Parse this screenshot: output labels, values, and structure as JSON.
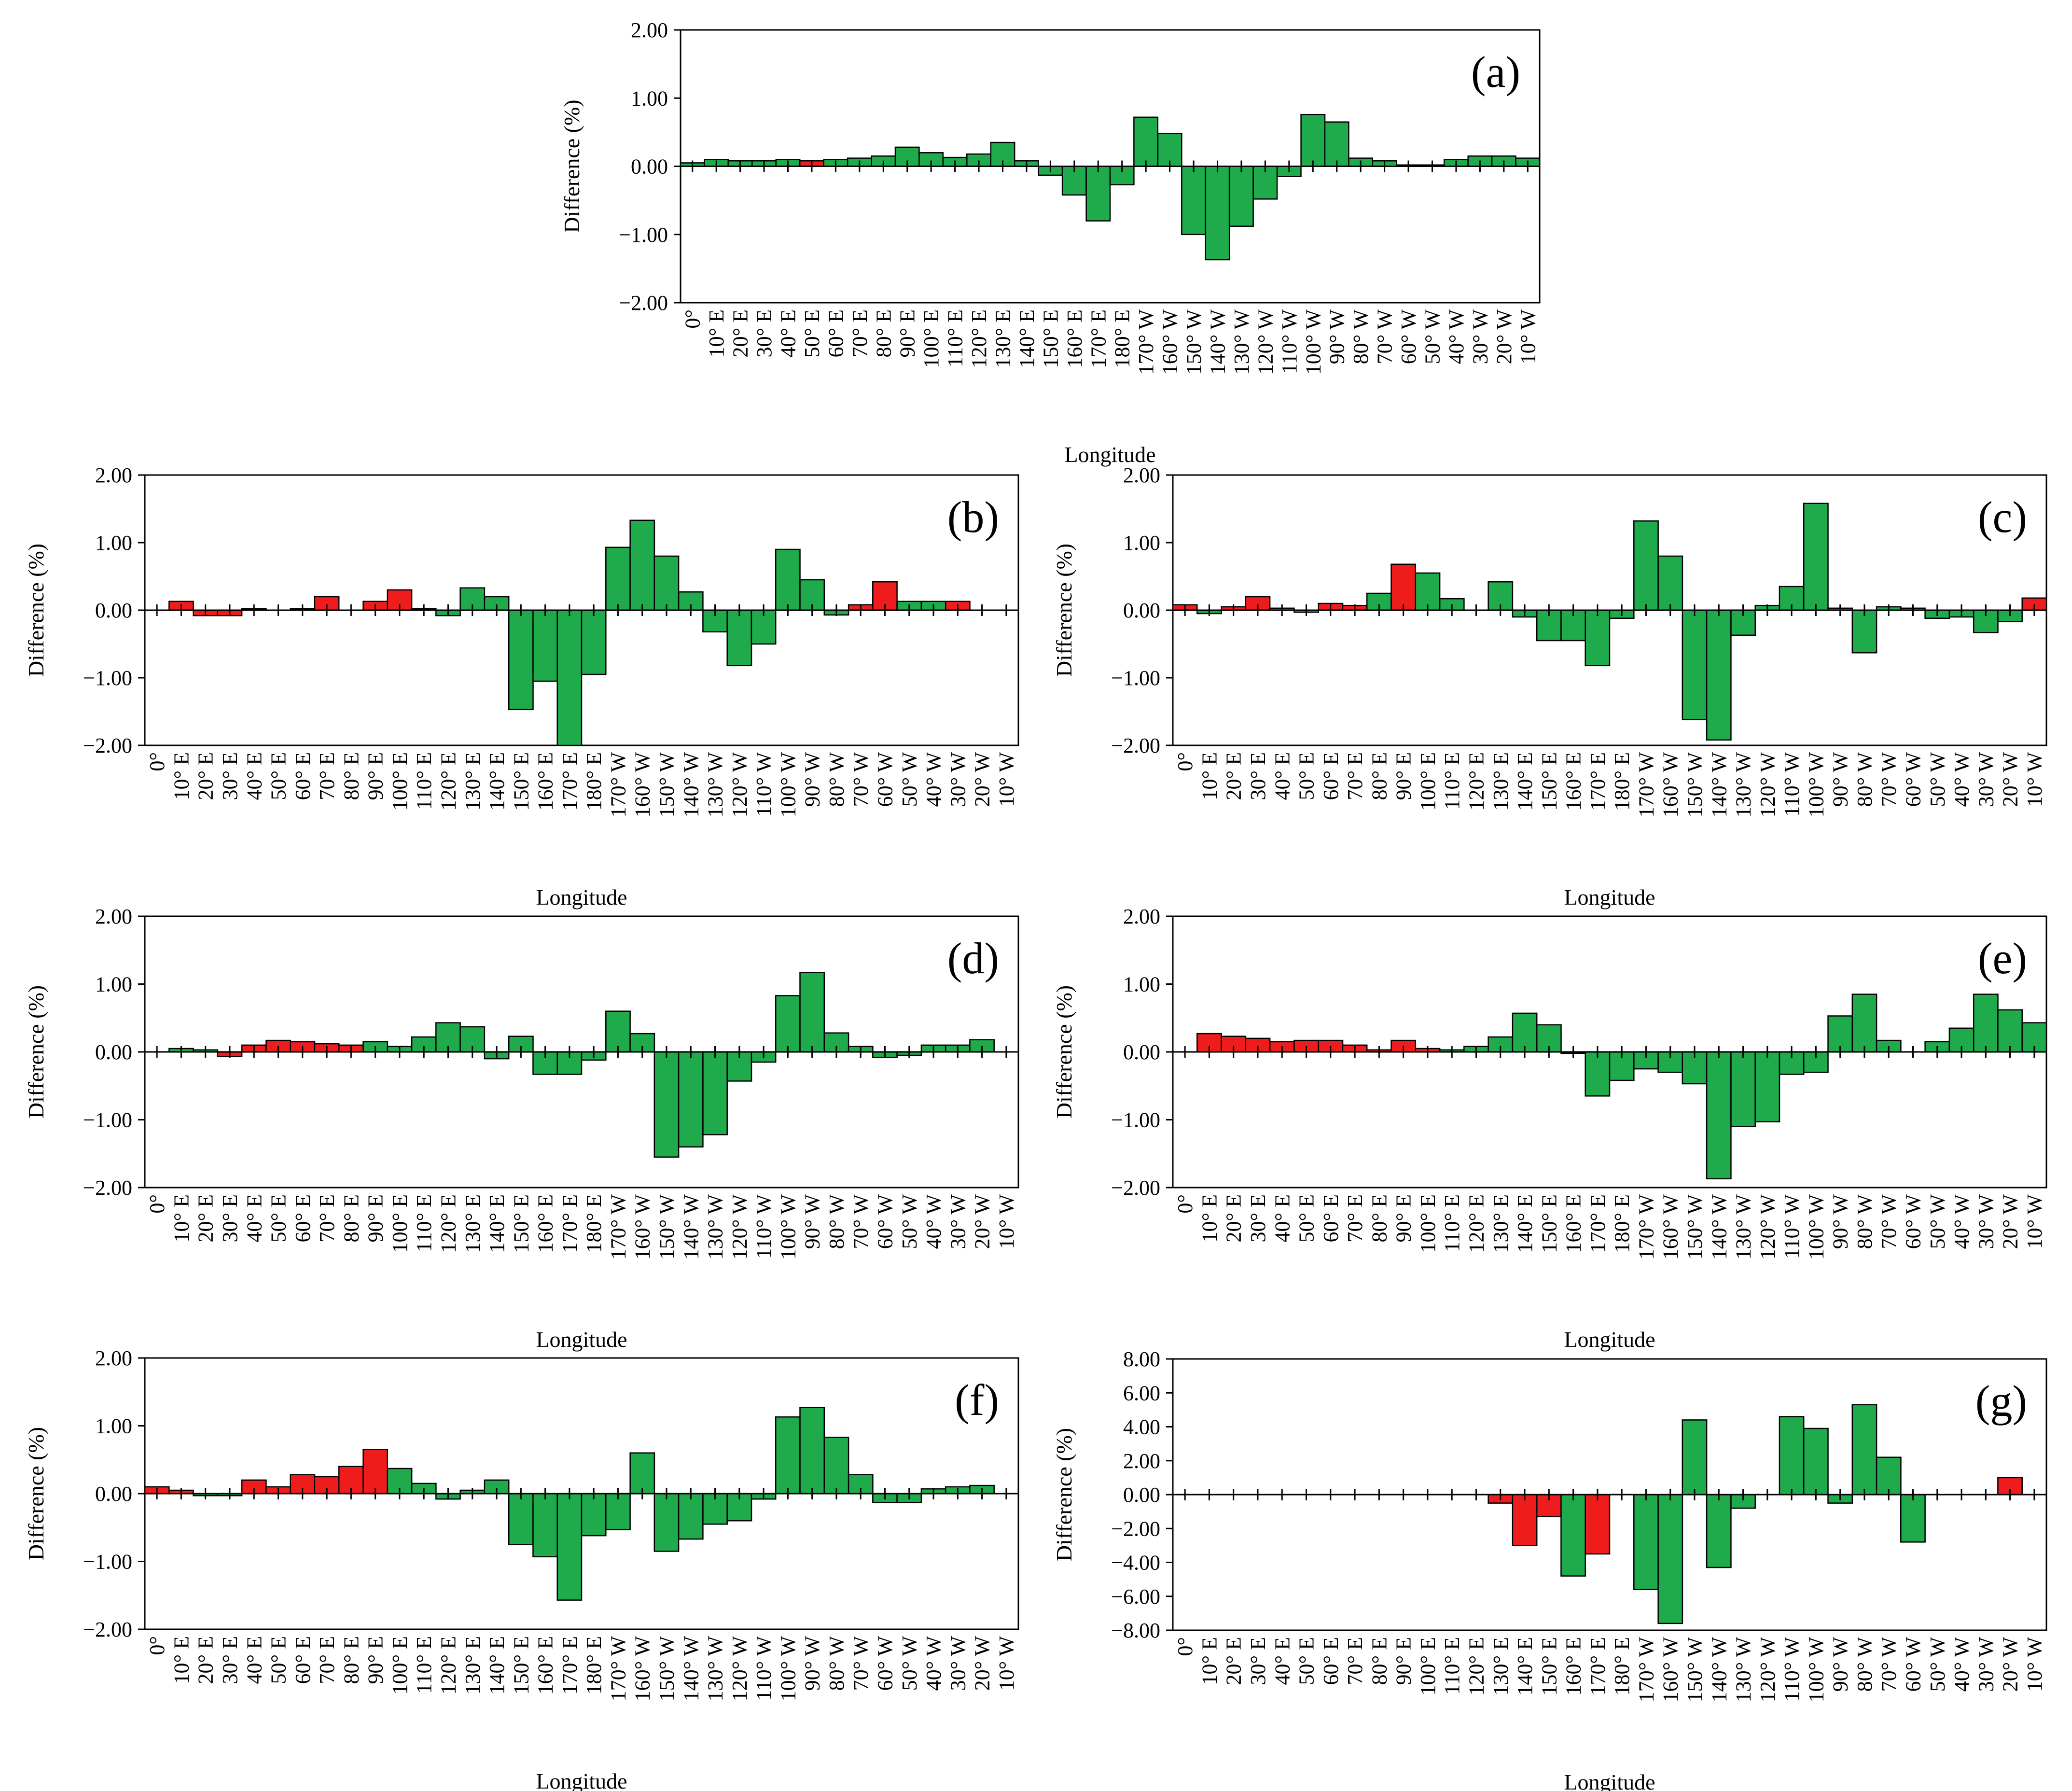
{
  "figure": {
    "colors": {
      "green": "#1faa4b",
      "red": "#ee1c1c",
      "edge": "#000000",
      "axis": "#000000"
    },
    "x_tick_labels": [
      "0°",
      "10° E",
      "20° E",
      "30° E",
      "40° E",
      "50° E",
      "60° E",
      "70° E",
      "80° E",
      "90° E",
      "100° E",
      "110° E",
      "120° E",
      "130° E",
      "140° E",
      "150° E",
      "160° E",
      "170° E",
      "180° E",
      "170° W",
      "160° W",
      "150° W",
      "140° W",
      "130° W",
      "120° W",
      "110° W",
      "100° W",
      "90° W",
      "80° W",
      "70° W",
      "60° W",
      "50° W",
      "40° W",
      "30° W",
      "20° W",
      "10° W"
    ]
  },
  "chart_data": [
    {
      "id": "a",
      "type": "bar",
      "panel_label": "(a)",
      "xlabel": "Longitude",
      "ylabel": "Difference  (%)",
      "ylim": [
        -2,
        2
      ],
      "yticks": [
        "2.00",
        "1.00",
        "0.00",
        "−1.00",
        "−2.00"
      ],
      "values": [
        0.05,
        0.1,
        0.08,
        0.08,
        0.1,
        0.08,
        0.1,
        0.12,
        0.15,
        0.28,
        0.2,
        0.13,
        0.18,
        0.35,
        0.08,
        -0.13,
        -0.42,
        -0.8,
        -0.27,
        0.72,
        0.48,
        -1.0,
        -1.37,
        -0.88,
        -0.48,
        -0.15,
        0.76,
        0.65,
        0.12,
        0.08,
        0.02,
        0.02,
        0.1,
        0.15,
        0.15,
        0.12
      ],
      "colors": [
        "g",
        "g",
        "g",
        "g",
        "g",
        "r",
        "g",
        "g",
        "g",
        "g",
        "g",
        "g",
        "g",
        "g",
        "g",
        "g",
        "g",
        "g",
        "g",
        "g",
        "g",
        "g",
        "g",
        "g",
        "g",
        "g",
        "g",
        "g",
        "g",
        "g",
        "g",
        "g",
        "g",
        "g",
        "g",
        "g"
      ]
    },
    {
      "id": "b",
      "type": "bar",
      "panel_label": "(b)",
      "xlabel": "Longitude",
      "ylabel": "Difference  (%)",
      "ylim": [
        -2,
        2
      ],
      "yticks": [
        "2.00",
        "1.00",
        "0.00",
        "−1.00",
        "−2.00"
      ],
      "values": [
        0.0,
        0.13,
        -0.08,
        -0.08,
        0.02,
        0.0,
        0.02,
        0.2,
        0.0,
        0.13,
        0.3,
        0.02,
        -0.08,
        0.33,
        0.2,
        -1.47,
        -1.05,
        -2.0,
        -0.95,
        0.93,
        1.33,
        0.8,
        0.27,
        -0.32,
        -0.82,
        -0.5,
        0.9,
        0.45,
        -0.07,
        0.08,
        0.42,
        0.13,
        0.13,
        0.13,
        0.0,
        0.0
      ],
      "colors": [
        "g",
        "r",
        "r",
        "r",
        "g",
        "g",
        "g",
        "r",
        "g",
        "r",
        "r",
        "g",
        "g",
        "g",
        "g",
        "g",
        "g",
        "g",
        "g",
        "g",
        "g",
        "g",
        "g",
        "g",
        "g",
        "g",
        "g",
        "g",
        "g",
        "r",
        "r",
        "g",
        "g",
        "r",
        "g",
        "g"
      ]
    },
    {
      "id": "c",
      "type": "bar",
      "panel_label": "(c)",
      "xlabel": "Longitude",
      "ylabel": "Difference  (%)",
      "ylim": [
        -2,
        2
      ],
      "yticks": [
        "2.00",
        "1.00",
        "0.00",
        "−1.00",
        "−2.00"
      ],
      "values": [
        0.08,
        -0.05,
        0.05,
        0.2,
        0.03,
        -0.03,
        0.1,
        0.07,
        0.25,
        0.68,
        0.55,
        0.17,
        0.0,
        0.42,
        -0.1,
        -0.45,
        -0.45,
        -0.82,
        -0.12,
        1.32,
        0.8,
        -1.62,
        -1.92,
        -0.37,
        0.07,
        0.35,
        1.58,
        0.03,
        -0.63,
        0.05,
        0.03,
        -0.12,
        -0.1,
        -0.33,
        -0.17,
        0.18
      ],
      "colors": [
        "r",
        "g",
        "r",
        "r",
        "g",
        "g",
        "r",
        "r",
        "g",
        "r",
        "g",
        "g",
        "g",
        "g",
        "g",
        "g",
        "g",
        "g",
        "g",
        "g",
        "g",
        "g",
        "g",
        "g",
        "g",
        "g",
        "g",
        "g",
        "g",
        "g",
        "g",
        "g",
        "g",
        "g",
        "g",
        "r"
      ]
    },
    {
      "id": "d",
      "type": "bar",
      "panel_label": "(d)",
      "xlabel": "Longitude",
      "ylabel": "Difference  (%)",
      "ylim": [
        -2,
        2
      ],
      "yticks": [
        "2.00",
        "1.00",
        "0.00",
        "−1.00",
        "−2.00"
      ],
      "values": [
        0.0,
        0.05,
        0.03,
        -0.07,
        0.1,
        0.17,
        0.15,
        0.12,
        0.1,
        0.15,
        0.08,
        0.22,
        0.43,
        0.37,
        -0.1,
        0.23,
        -0.33,
        -0.33,
        -0.12,
        0.6,
        0.27,
        -1.55,
        -1.4,
        -1.22,
        -0.43,
        -0.15,
        0.83,
        1.17,
        0.28,
        0.08,
        -0.08,
        -0.05,
        0.1,
        0.1,
        0.18,
        0.0
      ],
      "colors": [
        "g",
        "g",
        "g",
        "r",
        "r",
        "r",
        "r",
        "r",
        "r",
        "g",
        "g",
        "g",
        "g",
        "g",
        "g",
        "g",
        "g",
        "g",
        "g",
        "g",
        "g",
        "g",
        "g",
        "g",
        "g",
        "g",
        "g",
        "g",
        "g",
        "g",
        "g",
        "g",
        "g",
        "g",
        "g",
        "g"
      ]
    },
    {
      "id": "e",
      "type": "bar",
      "panel_label": "(e)",
      "xlabel": "Longitude",
      "ylabel": "Difference  (%)",
      "ylim": [
        -2,
        2
      ],
      "yticks": [
        "2.00",
        "1.00",
        "0.00",
        "−1.00",
        "−2.00"
      ],
      "values": [
        0.0,
        0.27,
        0.23,
        0.2,
        0.15,
        0.17,
        0.17,
        0.1,
        0.03,
        0.17,
        0.05,
        0.03,
        0.08,
        0.22,
        0.57,
        0.4,
        -0.02,
        -0.65,
        -0.42,
        -0.25,
        -0.3,
        -0.47,
        -1.87,
        -1.1,
        -1.03,
        -0.33,
        -0.3,
        0.53,
        0.85,
        0.17,
        0.0,
        0.15,
        0.35,
        0.85,
        0.62,
        0.43
      ],
      "colors": [
        "g",
        "r",
        "r",
        "r",
        "r",
        "r",
        "r",
        "r",
        "r",
        "r",
        "r",
        "g",
        "g",
        "g",
        "g",
        "g",
        "g",
        "g",
        "g",
        "g",
        "g",
        "g",
        "g",
        "g",
        "g",
        "g",
        "g",
        "g",
        "g",
        "g",
        "g",
        "g",
        "g",
        "g",
        "g",
        "g"
      ]
    },
    {
      "id": "f",
      "type": "bar",
      "panel_label": "(f)",
      "xlabel": "Longitude",
      "ylabel": "Difference  (%)",
      "ylim": [
        -2,
        2
      ],
      "yticks": [
        "2.00",
        "1.00",
        "0.00",
        "−1.00",
        "−2.00"
      ],
      "values": [
        0.1,
        0.05,
        -0.03,
        -0.03,
        0.2,
        0.1,
        0.28,
        0.25,
        0.4,
        0.65,
        0.37,
        0.15,
        -0.08,
        0.05,
        0.2,
        -0.75,
        -0.93,
        -1.57,
        -0.62,
        -0.53,
        0.6,
        -0.85,
        -0.67,
        -0.45,
        -0.4,
        -0.08,
        1.13,
        1.27,
        0.83,
        0.28,
        -0.13,
        -0.13,
        0.07,
        0.1,
        0.12,
        0.0
      ],
      "colors": [
        "r",
        "r",
        "g",
        "g",
        "r",
        "r",
        "r",
        "r",
        "r",
        "r",
        "g",
        "g",
        "g",
        "g",
        "g",
        "g",
        "g",
        "g",
        "g",
        "g",
        "g",
        "g",
        "g",
        "g",
        "g",
        "g",
        "g",
        "g",
        "g",
        "g",
        "g",
        "g",
        "g",
        "g",
        "g",
        "g"
      ]
    },
    {
      "id": "g",
      "type": "bar",
      "panel_label": "(g)",
      "xlabel": "Longitude",
      "ylabel": "Difference  (%)",
      "ylim": [
        -8,
        8
      ],
      "yticks": [
        "8.00",
        "6.00",
        "4.00",
        "2.00",
        "0.00",
        "−2.00",
        "−4.00",
        "−6.00",
        "−8.00"
      ],
      "values": [
        0,
        0,
        0,
        0,
        0,
        0,
        0,
        0,
        0,
        0,
        0,
        0,
        0,
        -0.5,
        -3.0,
        -1.3,
        -4.8,
        -3.5,
        0,
        -5.6,
        -7.6,
        4.4,
        -4.3,
        -0.8,
        0,
        4.6,
        3.9,
        -0.5,
        5.3,
        2.2,
        -2.8,
        0,
        0,
        0,
        1.0,
        0
      ],
      "colors": [
        "g",
        "g",
        "g",
        "g",
        "g",
        "g",
        "g",
        "g",
        "g",
        "g",
        "g",
        "g",
        "g",
        "r",
        "r",
        "r",
        "g",
        "r",
        "g",
        "g",
        "g",
        "g",
        "g",
        "g",
        "g",
        "g",
        "g",
        "g",
        "g",
        "g",
        "g",
        "g",
        "g",
        "g",
        "r",
        "g"
      ]
    }
  ]
}
